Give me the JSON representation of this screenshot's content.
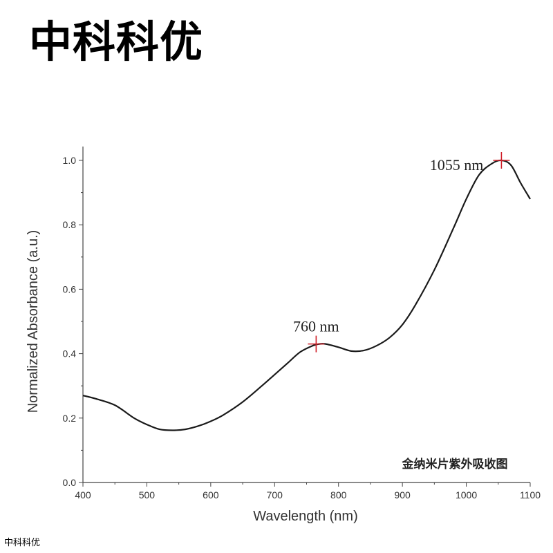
{
  "header": {
    "brand": "中科科优"
  },
  "footer": {
    "brand": "中科科优"
  },
  "chart_data": {
    "type": "line",
    "xlabel": "Wavelength (nm)",
    "ylabel": "Normalized Absorbance (a.u.)",
    "caption": "金纳米片紫外吸收图",
    "xlim": [
      400,
      1100
    ],
    "ylim": [
      0.0,
      1.0
    ],
    "x_ticks": [
      400,
      500,
      600,
      700,
      800,
      900,
      1000,
      1100
    ],
    "y_ticks": [
      "0.0",
      "0.2",
      "0.4",
      "0.6",
      "0.8",
      "1.0"
    ],
    "grid": false,
    "line_color": "#1a1a1a",
    "marker_color": "#d0202a",
    "series": [
      {
        "x": [
          400,
          420,
          450,
          480,
          500,
          520,
          540,
          560,
          580,
          600,
          620,
          650,
          680,
          700,
          720,
          740,
          760,
          770,
          780,
          800,
          820,
          840,
          860,
          880,
          900,
          920,
          950,
          980,
          1000,
          1020,
          1040,
          1055,
          1070,
          1085,
          1100
        ],
        "y": [
          0.27,
          0.26,
          0.24,
          0.2,
          0.18,
          0.165,
          0.162,
          0.165,
          0.175,
          0.19,
          0.21,
          0.25,
          0.3,
          0.335,
          0.37,
          0.405,
          0.425,
          0.43,
          0.43,
          0.42,
          0.408,
          0.41,
          0.425,
          0.45,
          0.49,
          0.55,
          0.66,
          0.79,
          0.88,
          0.955,
          0.99,
          1.0,
          0.985,
          0.93,
          0.88
        ]
      }
    ],
    "annotations": [
      {
        "text": "760 nm",
        "x": 765,
        "y": 0.43
      },
      {
        "text": "1055 nm",
        "x": 1055,
        "y": 1.0
      }
    ]
  }
}
